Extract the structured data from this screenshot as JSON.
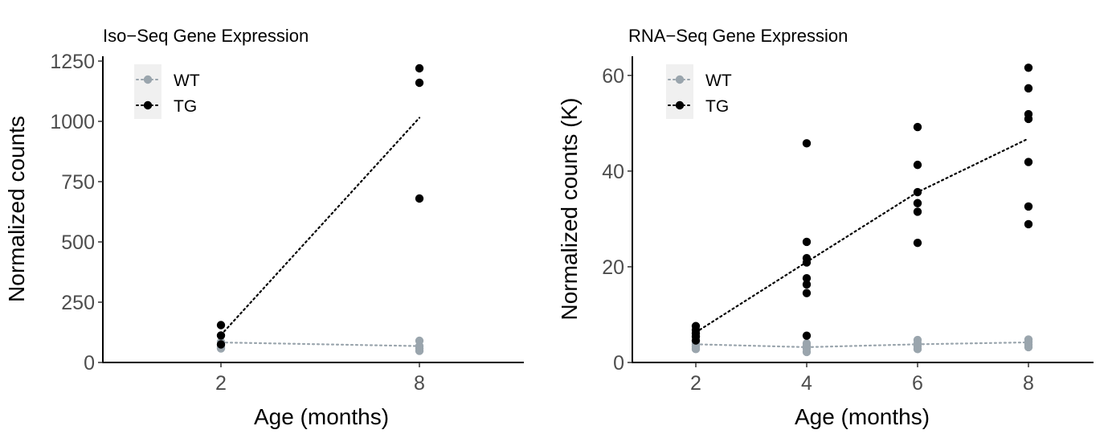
{
  "chart_data": [
    {
      "type": "scatter",
      "title": "Iso−Seq Gene Expression",
      "xlabel": "Age (months)",
      "ylabel": "Normalized counts",
      "x_categories": [
        "2",
        "8"
      ],
      "ylim": [
        0,
        1270
      ],
      "yticks": [
        "0",
        "250",
        "500",
        "750",
        "1000",
        "1250"
      ],
      "grid": false,
      "legend_position": "top-left",
      "series": [
        {
          "name": "WT",
          "color": "#9aa5ad",
          "points": [
            {
              "x": "2",
              "y": 58
            },
            {
              "x": "2",
              "y": 64
            },
            {
              "x": "2",
              "y": 72
            },
            {
              "x": "2",
              "y": 85
            },
            {
              "x": "8",
              "y": 48
            },
            {
              "x": "8",
              "y": 58
            },
            {
              "x": "8",
              "y": 68
            },
            {
              "x": "8",
              "y": 90
            }
          ],
          "trend": [
            {
              "x": "2",
              "y": 83
            },
            {
              "x": "8",
              "y": 68
            }
          ]
        },
        {
          "name": "TG",
          "color": "#000000",
          "points": [
            {
              "x": "2",
              "y": 75
            },
            {
              "x": "2",
              "y": 112
            },
            {
              "x": "2",
              "y": 155
            },
            {
              "x": "8",
              "y": 680
            },
            {
              "x": "8",
              "y": 1160
            },
            {
              "x": "8",
              "y": 1220
            }
          ],
          "trend": [
            {
              "x": "2",
              "y": 114
            },
            {
              "x": "8",
              "y": 1015
            }
          ]
        }
      ]
    },
    {
      "type": "scatter",
      "title": "RNA−Seq Gene Expression",
      "xlabel": "Age (months)",
      "ylabel": "Normalized counts (K)",
      "x_categories": [
        "2",
        "4",
        "6",
        "8"
      ],
      "ylim": [
        0,
        64
      ],
      "yticks": [
        "0",
        "20",
        "40",
        "60"
      ],
      "grid": false,
      "legend_position": "top-left",
      "series": [
        {
          "name": "WT",
          "color": "#9aa5ad",
          "points": [
            {
              "x": "2",
              "y": 2.8
            },
            {
              "x": "2",
              "y": 3.3
            },
            {
              "x": "2",
              "y": 3.8
            },
            {
              "x": "2",
              "y": 4.3
            },
            {
              "x": "4",
              "y": 2.2
            },
            {
              "x": "4",
              "y": 2.9
            },
            {
              "x": "4",
              "y": 3.5
            },
            {
              "x": "4",
              "y": 4.0
            },
            {
              "x": "6",
              "y": 2.8
            },
            {
              "x": "6",
              "y": 3.4
            },
            {
              "x": "6",
              "y": 4.0
            },
            {
              "x": "6",
              "y": 4.7
            },
            {
              "x": "8",
              "y": 3.2
            },
            {
              "x": "8",
              "y": 3.7
            },
            {
              "x": "8",
              "y": 4.3
            },
            {
              "x": "8",
              "y": 4.8
            }
          ],
          "trend": [
            {
              "x": "2",
              "y": 3.8
            },
            {
              "x": "4",
              "y": 3.2
            },
            {
              "x": "6",
              "y": 3.8
            },
            {
              "x": "8",
              "y": 4.2
            }
          ]
        },
        {
          "name": "TG",
          "color": "#000000",
          "points": [
            {
              "x": "2",
              "y": 4.6
            },
            {
              "x": "2",
              "y": 5.4
            },
            {
              "x": "2",
              "y": 6.1
            },
            {
              "x": "2",
              "y": 6.8
            },
            {
              "x": "2",
              "y": 7.6
            },
            {
              "x": "4",
              "y": 5.6
            },
            {
              "x": "4",
              "y": 14.5
            },
            {
              "x": "4",
              "y": 16.3
            },
            {
              "x": "4",
              "y": 17.6
            },
            {
              "x": "4",
              "y": 20.9
            },
            {
              "x": "4",
              "y": 21.8
            },
            {
              "x": "4",
              "y": 25.2
            },
            {
              "x": "4",
              "y": 45.8
            },
            {
              "x": "6",
              "y": 25.0
            },
            {
              "x": "6",
              "y": 31.5
            },
            {
              "x": "6",
              "y": 33.3
            },
            {
              "x": "6",
              "y": 35.6
            },
            {
              "x": "6",
              "y": 41.3
            },
            {
              "x": "6",
              "y": 49.2
            },
            {
              "x": "8",
              "y": 28.9
            },
            {
              "x": "8",
              "y": 32.6
            },
            {
              "x": "8",
              "y": 41.9
            },
            {
              "x": "8",
              "y": 50.9
            },
            {
              "x": "8",
              "y": 51.9
            },
            {
              "x": "8",
              "y": 57.3
            },
            {
              "x": "8",
              "y": 61.6
            }
          ],
          "trend": [
            {
              "x": "2",
              "y": 6.3
            },
            {
              "x": "4",
              "y": 21.0
            },
            {
              "x": "6",
              "y": 35.6
            },
            {
              "x": "8",
              "y": 46.8
            }
          ]
        }
      ]
    }
  ]
}
